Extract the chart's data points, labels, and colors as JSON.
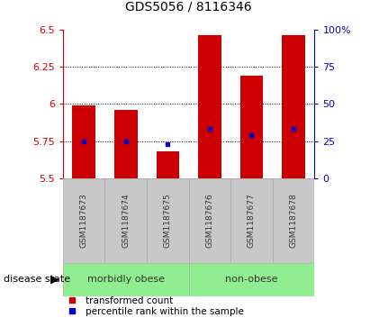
{
  "title": "GDS5056 / 8116346",
  "samples": [
    "GSM1187673",
    "GSM1187674",
    "GSM1187675",
    "GSM1187676",
    "GSM1187677",
    "GSM1187678"
  ],
  "transformed_count": [
    5.99,
    5.96,
    5.68,
    6.46,
    6.19,
    6.46
  ],
  "percentile_rank": [
    5.75,
    5.75,
    5.73,
    5.835,
    5.79,
    5.835
  ],
  "bar_bottom": 5.5,
  "ylim_left": [
    5.5,
    6.5
  ],
  "ylim_right": [
    0,
    100
  ],
  "yticks_left": [
    5.5,
    5.75,
    6.0,
    6.25,
    6.5
  ],
  "yticks_right": [
    0,
    25,
    50,
    75,
    100
  ],
  "gridlines": [
    5.75,
    6.0,
    6.25
  ],
  "bar_color": "#cc0000",
  "marker_color": "#0000cc",
  "bar_width": 0.55,
  "groups": [
    {
      "label": "morbidly obese",
      "indices": [
        0,
        1,
        2
      ],
      "color": "#90ee90"
    },
    {
      "label": "non-obese",
      "indices": [
        3,
        4,
        5
      ],
      "color": "#90ee90"
    }
  ],
  "disease_state_label": "disease state",
  "legend_items": [
    {
      "label": "transformed count",
      "color": "#cc0000"
    },
    {
      "label": "percentile rank within the sample",
      "color": "#0000cc"
    }
  ],
  "left_axis_color": "#cc0000",
  "right_axis_color": "#0000cc",
  "background_color": "#ffffff",
  "plot_bg_color": "#ffffff",
  "sample_box_color": "#c8c8c8",
  "sample_box_edge": "#aaaaaa",
  "title_fontsize": 10,
  "tick_fontsize": 8,
  "sample_fontsize": 6.5,
  "group_fontsize": 8,
  "legend_fontsize": 7.5,
  "disease_fontsize": 8
}
